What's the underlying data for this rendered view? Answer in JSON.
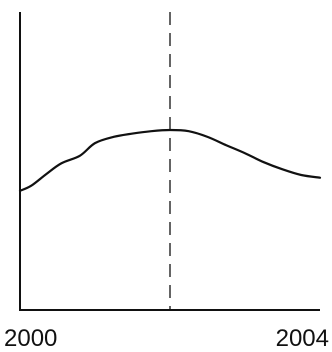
{
  "chart_data": {
    "type": "line",
    "title": "",
    "xlabel": "",
    "ylabel": "",
    "x_tick_labels": [
      "2000",
      "2004"
    ],
    "xlim": [
      2000,
      2004
    ],
    "ylim": [
      0,
      100
    ],
    "grid": false,
    "legend": "none",
    "series": [
      {
        "color": "#111111",
        "x": [
          2000,
          2000.15,
          2000.35,
          2000.55,
          2000.8,
          2001.0,
          2001.25,
          2001.5,
          2001.75,
          2002.0,
          2002.25,
          2002.5,
          2002.75,
          2003.0,
          2003.25,
          2003.5,
          2003.75,
          2004.0
        ],
        "y": [
          40.0,
          41.7,
          45.6,
          49.2,
          51.8,
          56.0,
          58.1,
          59.2,
          60.0,
          60.4,
          60.0,
          58.1,
          55.3,
          52.6,
          49.6,
          47.2,
          45.3,
          44.4
        ]
      }
    ],
    "reference_line": {
      "x": 2002,
      "style": "dashed",
      "color": "#111111"
    },
    "axis_color": "#111111"
  }
}
